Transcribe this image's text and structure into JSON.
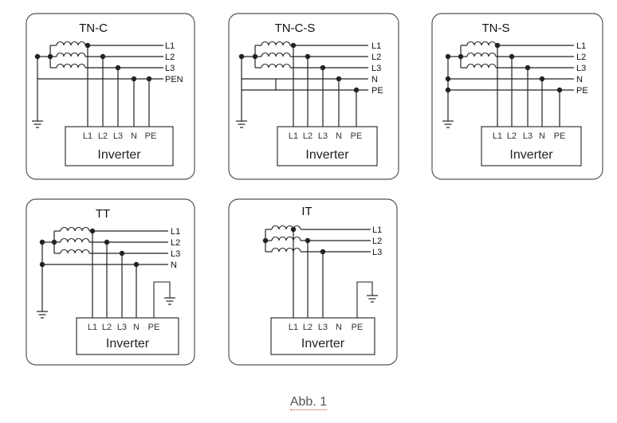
{
  "panels": [
    {
      "id": "tn-c",
      "title": "TN-C",
      "lines": [
        "L1",
        "L2",
        "L3",
        "PEN"
      ],
      "terminals": [
        "L1",
        "L2",
        "L3",
        "N",
        "PE"
      ],
      "box_label": "Inverter"
    },
    {
      "id": "tn-c-s",
      "title": "TN-C-S",
      "lines": [
        "L1",
        "L2",
        "L3",
        "N",
        "PE"
      ],
      "terminals": [
        "L1",
        "L2",
        "L3",
        "N",
        "PE"
      ],
      "box_label": "Inverter"
    },
    {
      "id": "tn-s",
      "title": "TN-S",
      "lines": [
        "L1",
        "L2",
        "L3",
        "N",
        "PE"
      ],
      "terminals": [
        "L1",
        "L2",
        "L3",
        "N",
        "PE"
      ],
      "box_label": "Inverter"
    },
    {
      "id": "tt",
      "title": "TT",
      "lines": [
        "L1",
        "L2",
        "L3",
        "N"
      ],
      "terminals": [
        "L1",
        "L2",
        "L3",
        "N",
        "PE"
      ],
      "box_label": "Inverter"
    },
    {
      "id": "it",
      "title": "IT",
      "lines": [
        "L1",
        "L2",
        "L3"
      ],
      "terminals": [
        "L1",
        "L2",
        "L3",
        "N",
        "PE"
      ],
      "box_label": "Inverter"
    }
  ],
  "caption": "Abb. 1",
  "colors": {
    "line": "#222222",
    "panel_border": "#555555",
    "caption": "#555555"
  }
}
